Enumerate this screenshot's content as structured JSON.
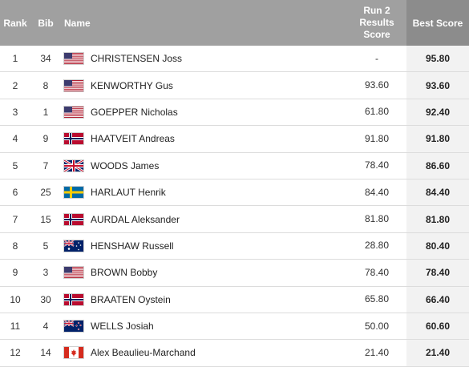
{
  "table": {
    "headers": {
      "rank": "Rank",
      "bib": "Bib",
      "name": "Name",
      "run_line1": "Run 2",
      "run_line2": "Results",
      "run_line3": "Score",
      "best": "Best Score"
    },
    "rows": [
      {
        "rank": "1",
        "bib": "34",
        "country": "usa",
        "name": "CHRISTENSEN Joss",
        "run": "-",
        "best": "95.80"
      },
      {
        "rank": "2",
        "bib": "8",
        "country": "usa",
        "name": "KENWORTHY Gus",
        "run": "93.60",
        "best": "93.60"
      },
      {
        "rank": "3",
        "bib": "1",
        "country": "usa",
        "name": "GOEPPER Nicholas",
        "run": "61.80",
        "best": "92.40"
      },
      {
        "rank": "4",
        "bib": "9",
        "country": "norway",
        "name": "HAATVEIT Andreas",
        "run": "91.80",
        "best": "91.80"
      },
      {
        "rank": "5",
        "bib": "7",
        "country": "uk",
        "name": "WOODS James",
        "run": "78.40",
        "best": "86.60"
      },
      {
        "rank": "6",
        "bib": "25",
        "country": "sweden",
        "name": "HARLAUT Henrik",
        "run": "84.40",
        "best": "84.40"
      },
      {
        "rank": "7",
        "bib": "15",
        "country": "norway",
        "name": "AURDAL Aleksander",
        "run": "81.80",
        "best": "81.80"
      },
      {
        "rank": "8",
        "bib": "5",
        "country": "australia",
        "name": "HENSHAW Russell",
        "run": "28.80",
        "best": "80.40"
      },
      {
        "rank": "9",
        "bib": "3",
        "country": "usa",
        "name": "BROWN Bobby",
        "run": "78.40",
        "best": "78.40"
      },
      {
        "rank": "10",
        "bib": "30",
        "country": "norway",
        "name": "BRAATEN Oystein",
        "run": "65.80",
        "best": "66.40"
      },
      {
        "rank": "11",
        "bib": "4",
        "country": "new-zealand",
        "name": "WELLS Josiah",
        "run": "50.00",
        "best": "60.60"
      },
      {
        "rank": "12",
        "bib": "14",
        "country": "canada",
        "name": "Alex Beaulieu-Marchand",
        "run": "21.40",
        "best": "21.40"
      }
    ]
  },
  "colors": {
    "header_bg": "#a0a0a0",
    "best_header_bg": "#8c8c8c",
    "best_cell_bg": "#f2f2f2"
  }
}
